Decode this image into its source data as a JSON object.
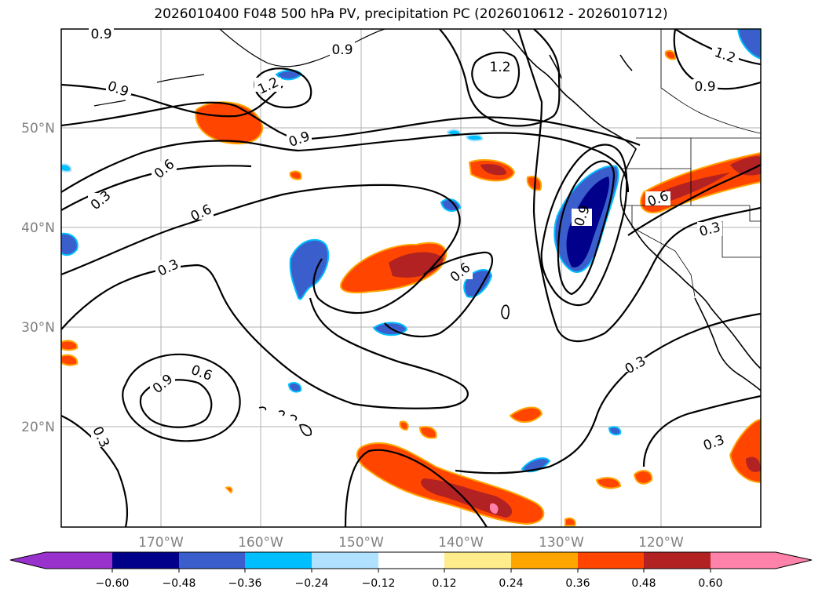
{
  "title": "2026010400 F048 500 hPa PV, precipitation PC (2026010612 - 2026010712)",
  "map": {
    "lat_ticks": [
      "50°N",
      "40°N",
      "30°N",
      "20°N"
    ],
    "lon_ticks": [
      "170°W",
      "160°W",
      "150°W",
      "140°W",
      "130°W",
      "120°W"
    ],
    "contour_labels": [
      "0.9",
      "0.9",
      "1.2",
      "1.2",
      "0.9",
      "1.2",
      "0.9",
      "0.9",
      "0.6",
      "0.3",
      "0.6",
      "0.3",
      "0.6",
      "0.9",
      "0.6",
      "0.3",
      "0.3",
      "0.9",
      "0.6",
      "0.3",
      "0.3"
    ],
    "contour_color": "#000000",
    "grid_color": "#b0b0b0"
  },
  "colorbar": {
    "ticks": [
      "−0.60",
      "−0.48",
      "−0.36",
      "−0.24",
      "−0.12",
      "0.12",
      "0.24",
      "0.36",
      "0.48",
      "0.60"
    ],
    "colors": [
      "#9932cc",
      "#00008b",
      "#3a5fcd",
      "#00bfff",
      "#b0e2ff",
      "#ffffff",
      "#ffec8b",
      "#ffa500",
      "#ff4500",
      "#b22222",
      "#ff82ab"
    ]
  }
}
